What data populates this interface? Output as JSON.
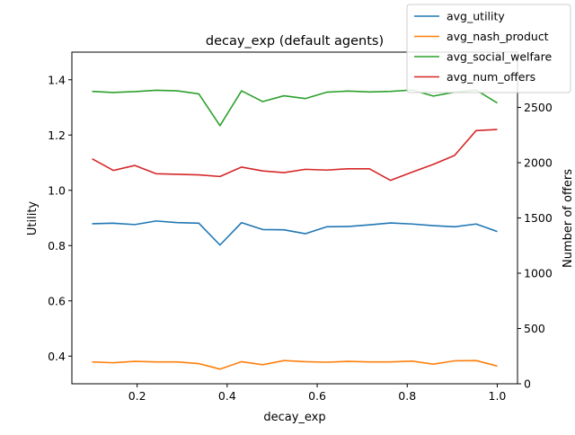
{
  "chart_data": {
    "type": "line",
    "title": "decay_exp (default agents)",
    "xlabel": "decay_exp",
    "ylabel": "Utility",
    "y2label": "Number of offers",
    "xlim": [
      0.055,
      1.045
    ],
    "ylim": [
      0.3,
      1.5
    ],
    "y2lim": [
      0,
      3000
    ],
    "x_ticks": [
      0.2,
      0.4,
      0.6,
      0.8,
      1.0
    ],
    "x_tick_labels": [
      "0.2",
      "0.4",
      "0.6",
      "0.8",
      "1.0"
    ],
    "y_ticks": [
      0.4,
      0.6,
      0.8,
      1.0,
      1.2,
      1.4
    ],
    "y_tick_labels": [
      "0.4",
      "0.6",
      "0.8",
      "1.0",
      "1.2",
      "1.4"
    ],
    "y2_ticks": [
      0,
      500,
      1000,
      1500,
      2000,
      2500
    ],
    "y2_tick_labels": [
      "0",
      "500",
      "1000",
      "1500",
      "2000",
      "2500"
    ],
    "legend_position": "top-right",
    "grid": false,
    "x": [
      0.1,
      0.147,
      0.195,
      0.242,
      0.289,
      0.337,
      0.384,
      0.432,
      0.479,
      0.526,
      0.574,
      0.621,
      0.668,
      0.716,
      0.763,
      0.811,
      0.858,
      0.905,
      0.953,
      1.0
    ],
    "series": [
      {
        "name": "avg_utility",
        "axis": "left",
        "color": "#1f77b4",
        "values": [
          0.879,
          0.881,
          0.876,
          0.889,
          0.883,
          0.881,
          0.802,
          0.883,
          0.858,
          0.857,
          0.843,
          0.868,
          0.869,
          0.875,
          0.882,
          0.878,
          0.872,
          0.868,
          0.878,
          0.851
        ]
      },
      {
        "name": "avg_nash_product",
        "axis": "left",
        "color": "#ff7f0e",
        "values": [
          0.379,
          0.376,
          0.381,
          0.379,
          0.379,
          0.373,
          0.353,
          0.38,
          0.369,
          0.384,
          0.38,
          0.378,
          0.381,
          0.379,
          0.379,
          0.382,
          0.371,
          0.383,
          0.384,
          0.364
        ]
      },
      {
        "name": "avg_social_welfare",
        "axis": "left",
        "color": "#2ca02c",
        "values": [
          1.358,
          1.354,
          1.357,
          1.362,
          1.36,
          1.349,
          1.234,
          1.36,
          1.321,
          1.342,
          1.332,
          1.355,
          1.359,
          1.356,
          1.358,
          1.363,
          1.341,
          1.355,
          1.363,
          1.316
        ]
      },
      {
        "name": "avg_num_offers",
        "axis": "right",
        "color": "#d62728",
        "values": [
          2035,
          1930,
          1975,
          1900,
          1895,
          1890,
          1875,
          1960,
          1925,
          1910,
          1940,
          1933,
          1945,
          1945,
          1840,
          1915,
          1985,
          2065,
          2290,
          2300
        ]
      }
    ]
  }
}
